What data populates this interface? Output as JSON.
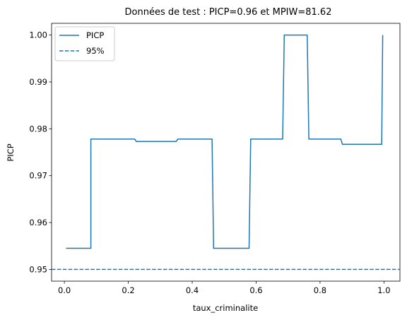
{
  "chart_data": {
    "type": "line",
    "title": "Données de test : PICP=0.96 et MPIW=81.62",
    "xlabel": "taux_criminalite",
    "ylabel": "PICP",
    "xlim": [
      -0.04,
      1.05
    ],
    "ylim": [
      0.9475,
      1.0025
    ],
    "xticks": [
      0.0,
      0.2,
      0.4,
      0.6,
      0.8,
      1.0
    ],
    "xtick_labels": [
      "0.0",
      "0.2",
      "0.4",
      "0.6",
      "0.8",
      "1.0"
    ],
    "yticks": [
      0.95,
      0.96,
      0.97,
      0.98,
      0.99,
      1.0
    ],
    "ytick_labels": [
      "0.95",
      "0.96",
      "0.97",
      "0.98",
      "0.99",
      "1.00"
    ],
    "grid": false,
    "legend_position": "top-left",
    "series": [
      {
        "name": "PICP",
        "style": "solid",
        "color": "#1f77b4",
        "x": [
          0.005,
          0.083,
          0.083,
          0.22,
          0.225,
          0.35,
          0.355,
          0.462,
          0.467,
          0.578,
          0.583,
          0.683,
          0.688,
          0.76,
          0.765,
          0.865,
          0.87,
          0.993,
          0.996
        ],
        "y": [
          0.9545,
          0.9545,
          0.9778,
          0.9778,
          0.9773,
          0.9773,
          0.9778,
          0.9778,
          0.9545,
          0.9545,
          0.9778,
          0.9778,
          1.0,
          1.0,
          0.9778,
          0.9778,
          0.9767,
          0.9767,
          1.0
        ]
      },
      {
        "name": "95%",
        "style": "dashed",
        "color": "#1f77b4",
        "y": 0.95
      }
    ]
  }
}
